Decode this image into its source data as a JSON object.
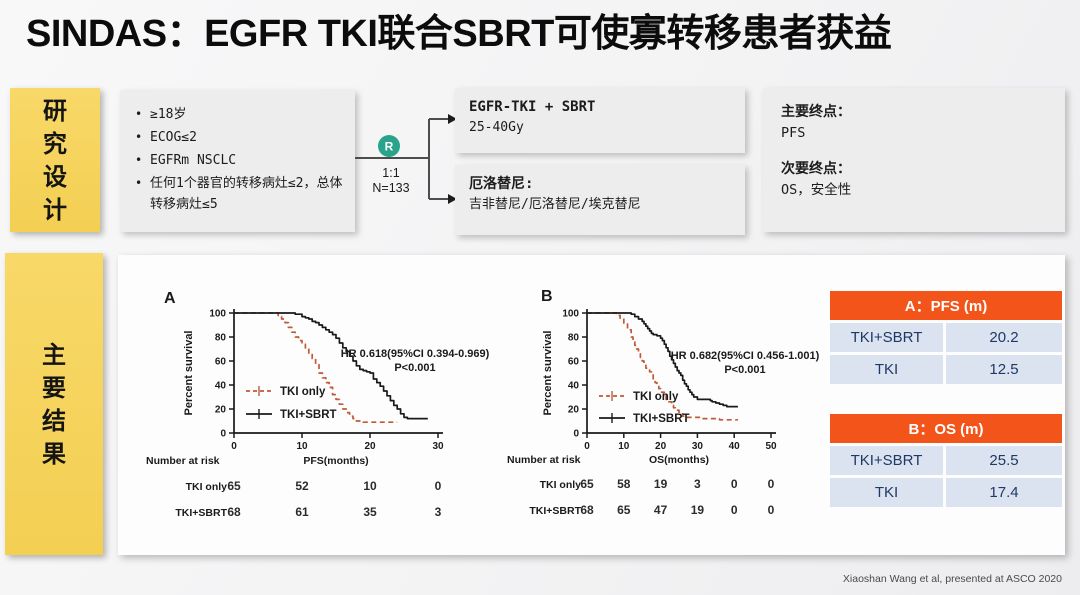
{
  "slide": {
    "title": "SINDAS：EGFR TKI联合SBRT可使寡转移患者获益",
    "footer": "Xiaoshan Wang et al, presented at ASCO 2020"
  },
  "design": {
    "tab_chars": [
      "研",
      "究",
      "设",
      "计"
    ],
    "criteria": [
      "≥18岁",
      "ECOG≤2",
      "EGFRm NSCLC",
      "任何1个器官的转移病灶≤2，总体转移病灶≤5"
    ],
    "randomization": {
      "symbol": "R",
      "ratio": "1:1",
      "n": "N=133"
    },
    "arm1": {
      "title": "EGFR-TKI + SBRT",
      "detail": "25-40Gy"
    },
    "arm2": {
      "title": "厄洛替尼:",
      "detail": "吉非替尼/厄洛替尼/埃克替尼"
    },
    "endpoints": {
      "primary_label": "主要终点：",
      "primary_value": "PFS",
      "secondary_label": "次要终点：",
      "secondary_value": "OS，安全性"
    }
  },
  "results": {
    "tab_chars": [
      "主",
      "要",
      "结",
      "果"
    ],
    "tables": {
      "a": {
        "header": "A：PFS (m)",
        "rows": [
          {
            "label": "TKI+SBRT",
            "value": "20.2"
          },
          {
            "label": "TKI",
            "value": "12.5"
          }
        ]
      },
      "b": {
        "header": "B：OS (m)",
        "rows": [
          {
            "label": "TKI+SBRT",
            "value": "25.5"
          },
          {
            "label": "TKI",
            "value": "17.4"
          }
        ]
      }
    }
  },
  "colors": {
    "accent_orange": "#f2541a",
    "table_row_blue": "#dbe3f0",
    "tab_yellow": "#f5d35c",
    "randomization_teal": "#2aa38c",
    "curve_red": "#c05a38",
    "curve_black": "#1a1a1a"
  },
  "chart_data": [
    {
      "type": "line",
      "subtype": "kaplan-meier",
      "panel_label": "A",
      "ylabel": "Percent survival",
      "xlabel": "PFS(months)",
      "xlim": [
        0,
        30
      ],
      "ylim": [
        0,
        100
      ],
      "xticks": [
        0,
        10,
        20,
        30
      ],
      "yticks": [
        0,
        20,
        40,
        60,
        80,
        100
      ],
      "annotation_lines": [
        "HR 0.618(95%CI 0.394-0.969)",
        "P<0.001"
      ],
      "series": [
        {
          "name": "TKI only",
          "color": "#c05a38",
          "dashed": true,
          "steps": [
            [
              0,
              100
            ],
            [
              5.5,
              100
            ],
            [
              6.5,
              97
            ],
            [
              7,
              95
            ],
            [
              7.5,
              92
            ],
            [
              8,
              88
            ],
            [
              8.5,
              84
            ],
            [
              9,
              80
            ],
            [
              9.5,
              77
            ],
            [
              10,
              74
            ],
            [
              10.5,
              70
            ],
            [
              11,
              66
            ],
            [
              11.5,
              62
            ],
            [
              12,
              57
            ],
            [
              12.5,
              50
            ],
            [
              13,
              46
            ],
            [
              13.5,
              42
            ],
            [
              14,
              38
            ],
            [
              14.5,
              32
            ],
            [
              15,
              28
            ],
            [
              15.5,
              24
            ],
            [
              16,
              20
            ],
            [
              16.5,
              17
            ],
            [
              17,
              14
            ],
            [
              17.5,
              12
            ],
            [
              18,
              10
            ],
            [
              19,
              9
            ],
            [
              24,
              9
            ]
          ]
        },
        {
          "name": "TKI+SBRT",
          "color": "#1a1a1a",
          "dashed": false,
          "steps": [
            [
              0,
              100
            ],
            [
              8.5,
              100
            ],
            [
              9,
              99
            ],
            [
              10,
              97
            ],
            [
              10.5,
              96
            ],
            [
              11,
              95
            ],
            [
              11.5,
              93
            ],
            [
              12,
              92
            ],
            [
              12.5,
              90
            ],
            [
              13,
              88
            ],
            [
              13.5,
              86
            ],
            [
              14,
              84
            ],
            [
              14.5,
              82
            ],
            [
              15,
              79
            ],
            [
              15.5,
              75
            ],
            [
              16,
              71
            ],
            [
              16.5,
              68
            ],
            [
              17,
              64
            ],
            [
              17.5,
              60
            ],
            [
              18,
              56
            ],
            [
              18.5,
              53
            ],
            [
              19,
              52
            ],
            [
              19.5,
              51
            ],
            [
              20,
              50
            ],
            [
              20.5,
              45
            ],
            [
              21,
              42
            ],
            [
              21.5,
              39
            ],
            [
              22,
              35
            ],
            [
              22.5,
              31
            ],
            [
              23,
              27
            ],
            [
              23.5,
              23
            ],
            [
              24,
              20
            ],
            [
              24.5,
              16
            ],
            [
              25,
              13
            ],
            [
              25.5,
              12
            ],
            [
              28.5,
              12
            ]
          ]
        }
      ],
      "number_at_risk": {
        "label": "Number at risk",
        "rows": [
          {
            "name": "TKI only",
            "values": [
              "65",
              "52",
              "10",
              "0"
            ]
          },
          {
            "name": "TKI+SBRT",
            "values": [
              "68",
              "61",
              "35",
              "3"
            ]
          }
        ]
      }
    },
    {
      "type": "line",
      "subtype": "kaplan-meier",
      "panel_label": "B",
      "ylabel": "Percent survival",
      "xlabel": "OS(months)",
      "xlim": [
        0,
        50
      ],
      "ylim": [
        0,
        100
      ],
      "xticks": [
        0,
        10,
        20,
        30,
        40,
        50
      ],
      "yticks": [
        0,
        20,
        40,
        60,
        80,
        100
      ],
      "annotation_lines": [
        "HR 0.682(95%CI 0.456-1.001)",
        "P<0.001"
      ],
      "series": [
        {
          "name": "TKI only",
          "color": "#c05a38",
          "dashed": true,
          "steps": [
            [
              0,
              100
            ],
            [
              7.5,
              100
            ],
            [
              8,
              98
            ],
            [
              9,
              95
            ],
            [
              10,
              91
            ],
            [
              11,
              86
            ],
            [
              12,
              80
            ],
            [
              12.5,
              76
            ],
            [
              13,
              73
            ],
            [
              13.5,
              70
            ],
            [
              14,
              66
            ],
            [
              14.5,
              63
            ],
            [
              15,
              60
            ],
            [
              15.5,
              57
            ],
            [
              16,
              54
            ],
            [
              17,
              51
            ],
            [
              17.5,
              49
            ],
            [
              18,
              45
            ],
            [
              18.5,
              42
            ],
            [
              19,
              40
            ],
            [
              19.5,
              37
            ],
            [
              20,
              34
            ],
            [
              21,
              31
            ],
            [
              21.5,
              28
            ],
            [
              22,
              26
            ],
            [
              23,
              23
            ],
            [
              23.5,
              21
            ],
            [
              24,
              19
            ],
            [
              25,
              16
            ],
            [
              26,
              14
            ],
            [
              27,
              13
            ],
            [
              30,
              13
            ],
            [
              31,
              12
            ],
            [
              35,
              12
            ],
            [
              36,
              11
            ],
            [
              41,
              11
            ]
          ]
        },
        {
          "name": "TKI+SBRT",
          "color": "#1a1a1a",
          "dashed": false,
          "steps": [
            [
              0,
              100
            ],
            [
              11.5,
              100
            ],
            [
              12,
              99
            ],
            [
              13,
              97
            ],
            [
              14,
              95
            ],
            [
              15,
              93
            ],
            [
              15.5,
              91
            ],
            [
              16,
              89
            ],
            [
              16.5,
              87
            ],
            [
              17,
              85
            ],
            [
              17.5,
              83
            ],
            [
              18,
              82
            ],
            [
              19,
              81
            ],
            [
              20,
              79
            ],
            [
              20.5,
              77
            ],
            [
              21,
              74
            ],
            [
              21.5,
              71
            ],
            [
              22,
              68
            ],
            [
              22.5,
              64
            ],
            [
              23,
              61
            ],
            [
              23.5,
              58
            ],
            [
              24,
              55
            ],
            [
              24.5,
              52
            ],
            [
              25,
              50
            ],
            [
              25.5,
              48
            ],
            [
              26,
              44
            ],
            [
              26.5,
              41
            ],
            [
              27,
              39
            ],
            [
              27.5,
              36
            ],
            [
              28,
              34
            ],
            [
              28.5,
              32
            ],
            [
              29,
              30
            ],
            [
              30,
              28
            ],
            [
              33,
              28
            ],
            [
              33.5,
              27
            ],
            [
              34,
              26
            ],
            [
              35,
              25
            ],
            [
              36,
              24
            ],
            [
              37,
              23
            ],
            [
              38,
              22
            ],
            [
              41,
              22
            ]
          ]
        }
      ],
      "number_at_risk": {
        "label": "Number at risk",
        "rows": [
          {
            "name": "TKI only",
            "values": [
              "65",
              "58",
              "19",
              "3",
              "0",
              "0"
            ]
          },
          {
            "name": "TKI+SBRT",
            "values": [
              "68",
              "65",
              "47",
              "19",
              "0",
              "0"
            ]
          }
        ]
      }
    }
  ]
}
